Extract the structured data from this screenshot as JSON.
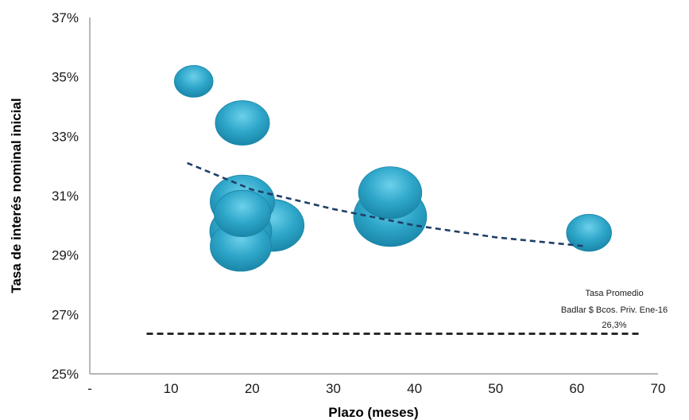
{
  "chart_data": {
    "type": "scatter",
    "xlabel": "Plazo (meses)",
    "ylabel": "Tasa de interés nominal inicial",
    "xlim": [
      0,
      70
    ],
    "ylim": [
      25,
      37
    ],
    "x_ticks": [
      "-",
      "10",
      "20",
      "30",
      "40",
      "50",
      "60",
      "70"
    ],
    "y_ticks": [
      "25%",
      "27%",
      "29%",
      "31%",
      "33%",
      "35%",
      "37%"
    ],
    "bubbles": [
      {
        "x": 12.8,
        "y": 34.85,
        "size": 0.28
      },
      {
        "x": 18.8,
        "y": 33.45,
        "size": 0.55
      },
      {
        "x": 22.5,
        "y": 30.0,
        "size": 0.75
      },
      {
        "x": 18.8,
        "y": 30.8,
        "size": 0.78
      },
      {
        "x": 18.6,
        "y": 29.8,
        "size": 0.72
      },
      {
        "x": 18.6,
        "y": 29.3,
        "size": 0.7
      },
      {
        "x": 18.8,
        "y": 30.4,
        "size": 0.6
      },
      {
        "x": 37.0,
        "y": 30.3,
        "size": 1.0
      },
      {
        "x": 37.0,
        "y": 31.1,
        "size": 0.75
      },
      {
        "x": 61.5,
        "y": 29.75,
        "size": 0.38
      }
    ],
    "trendline": {
      "type": "power",
      "x": [
        12,
        20,
        30,
        40,
        50,
        61
      ],
      "y": [
        32.1,
        31.2,
        30.55,
        30.0,
        29.6,
        29.3
      ]
    },
    "reference_line": {
      "y": 26.35,
      "x": [
        7,
        68
      ]
    },
    "colors": {
      "bubble": "#2ea6c9",
      "bubble_dark": "#1a86a8",
      "trend": "#1f3f66",
      "reference": "#111111",
      "axis": "#8a8a8a"
    }
  },
  "annotation": {
    "line1": "Tasa Promedio",
    "line2": "Badlar $ Bcos. Priv. Ene-16",
    "line3": "26,3%"
  }
}
